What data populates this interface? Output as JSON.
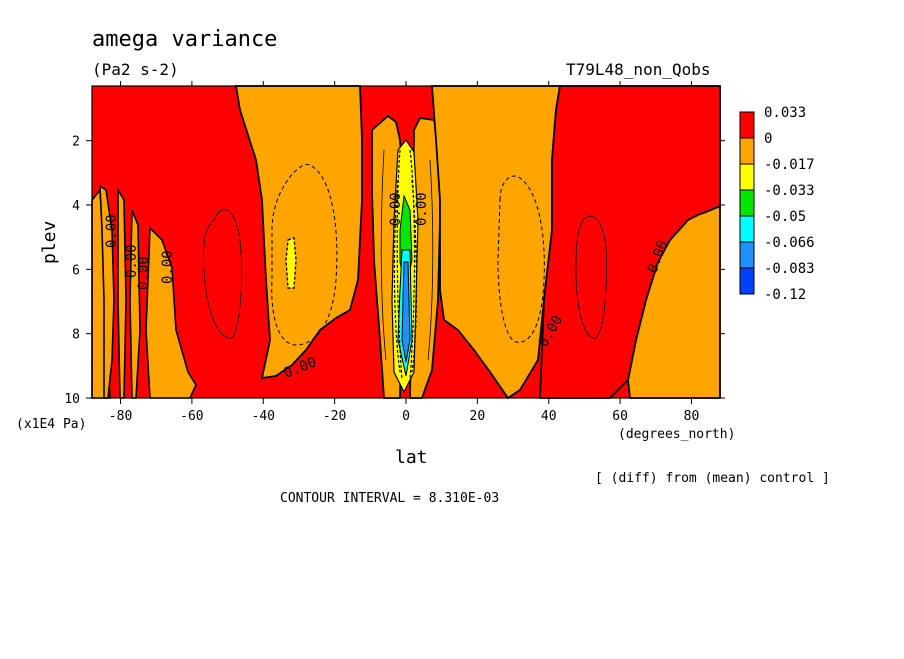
{
  "chart_data": {
    "type": "heatmap",
    "title": "amega variance",
    "units": "(Pa2 s-2)",
    "run_label": "T79L48_non_Qobs",
    "xlabel": "lat",
    "x_units": "(degrees_north)",
    "ylabel": "plev",
    "y_units": "(x1E4 Pa)",
    "xlim": [
      -88,
      88
    ],
    "ylim": [
      10,
      0.3
    ],
    "x_ticks": [
      -80,
      -60,
      -40,
      -20,
      0,
      20,
      40,
      60,
      80
    ],
    "y_ticks": [
      2,
      4,
      6,
      8,
      10
    ],
    "legend": {
      "labels": [
        "0.033",
        "0",
        "-0.017",
        "-0.033",
        "-0.05",
        "-0.066",
        "-0.083",
        "-0.12"
      ],
      "colors": [
        "#ff0000",
        "#ffa500",
        "#ffff00",
        "#00e600",
        "#00ffff",
        "#1e90ff",
        "#0040ff"
      ]
    },
    "contour_labels": [
      "0.00",
      "0.00",
      "0.00",
      "0.00",
      "0.00",
      "0.00",
      "0.00",
      "0.00",
      "0.00"
    ],
    "note": "[ (diff) from (mean) control ]",
    "contour_interval": "CONTOUR INTERVAL = 8.310E-03"
  }
}
